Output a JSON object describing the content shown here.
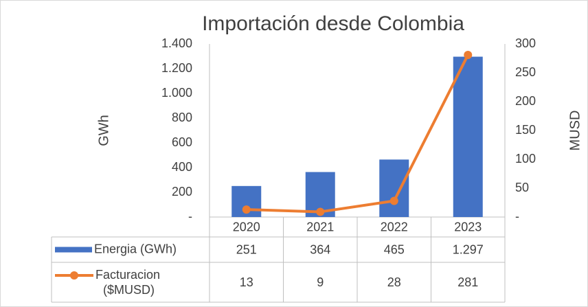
{
  "chart_data": {
    "type": "bar",
    "title": "Importación desde Colombia",
    "y_label": "GWh",
    "y2_label": "MUSD",
    "categories": [
      "2020",
      "2021",
      "2022",
      "2023"
    ],
    "series": [
      {
        "name": "Energia (GWh)",
        "type": "bar",
        "color": "#4472c4",
        "values": [
          251,
          364,
          465,
          1297
        ],
        "value_labels": [
          "251",
          "364",
          "465",
          "1.297"
        ]
      },
      {
        "name": "Facturacion ($MUSD)",
        "type": "line",
        "axis": "y2",
        "color": "#ed7d31",
        "values": [
          13,
          9,
          28,
          281
        ]
      }
    ],
    "ylim": [
      0,
      1400
    ],
    "yticks": [
      {
        "value": 0,
        "label": "-"
      },
      200,
      400,
      600,
      800,
      {
        "value": 1000,
        "label": "1.000"
      },
      {
        "value": 1200,
        "label": "1.200"
      },
      {
        "value": 1400,
        "label": "1.400"
      }
    ],
    "y2lim": [
      0,
      300
    ],
    "y2ticks": [
      {
        "value": 0,
        "label": "-"
      },
      50,
      100,
      150,
      200,
      250,
      300
    ],
    "grid": false,
    "data_table": true
  }
}
